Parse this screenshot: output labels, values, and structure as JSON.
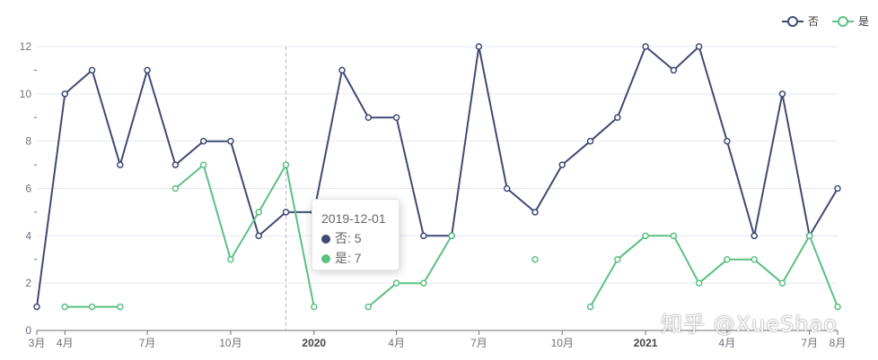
{
  "chart_data": {
    "type": "line",
    "x": [
      "2019-03-01",
      "2019-04-01",
      "2019-05-01",
      "2019-06-01",
      "2019-07-01",
      "2019-08-01",
      "2019-09-01",
      "2019-10-01",
      "2019-11-01",
      "2019-12-01",
      "2020-01-01",
      "2020-02-01",
      "2020-03-01",
      "2020-04-01",
      "2020-05-01",
      "2020-06-01",
      "2020-07-01",
      "2020-08-01",
      "2020-09-01",
      "2020-10-01",
      "2020-11-01",
      "2020-12-01",
      "2021-01-01",
      "2021-02-01",
      "2021-03-01",
      "2021-04-01",
      "2021-05-01",
      "2021-06-01",
      "2021-07-01",
      "2021-08-01"
    ],
    "x_tick_labels": [
      {
        "date": "2019-03-01",
        "label": "3月",
        "bold": false
      },
      {
        "date": "2019-04-01",
        "label": "4月",
        "bold": false
      },
      {
        "date": "2019-07-01",
        "label": "7月",
        "bold": false
      },
      {
        "date": "2019-10-01",
        "label": "10月",
        "bold": false
      },
      {
        "date": "2020-01-01",
        "label": "2020",
        "bold": true
      },
      {
        "date": "2020-04-01",
        "label": "4月",
        "bold": false
      },
      {
        "date": "2020-07-01",
        "label": "7月",
        "bold": false
      },
      {
        "date": "2020-10-01",
        "label": "10月",
        "bold": false
      },
      {
        "date": "2021-01-01",
        "label": "2021",
        "bold": true
      },
      {
        "date": "2021-04-01",
        "label": "4月",
        "bold": false
      },
      {
        "date": "2021-07-01",
        "label": "7月",
        "bold": false
      },
      {
        "date": "2021-08-01",
        "label": "8月",
        "bold": false
      }
    ],
    "y_ticks": [
      0,
      2,
      4,
      6,
      8,
      10,
      12
    ],
    "ylim": [
      0,
      12
    ],
    "grid": true,
    "legend_position": "top-right",
    "series": [
      {
        "name": "否",
        "color": "#3f4a75",
        "values": [
          1,
          10,
          11,
          7,
          11,
          7,
          8,
          8,
          4,
          5,
          5,
          11,
          9,
          9,
          4,
          4,
          12,
          6,
          5,
          7,
          8,
          9,
          12,
          11,
          12,
          8,
          4,
          10,
          4,
          6
        ]
      },
      {
        "name": "是",
        "color": "#5cc083",
        "values": [
          null,
          1,
          1,
          1,
          null,
          6,
          7,
          3,
          5,
          7,
          1,
          null,
          1,
          2,
          2,
          4,
          null,
          null,
          3,
          null,
          1,
          3,
          4,
          4,
          2,
          3,
          3,
          2,
          4,
          1
        ]
      }
    ],
    "hover_date": "2019-12-01"
  },
  "tooltip": {
    "title": "2019-12-01",
    "rows": [
      {
        "name": "否",
        "value": "5",
        "color": "#3f4a75"
      },
      {
        "name": "是",
        "value": "7",
        "color": "#5cc083"
      }
    ]
  },
  "watermark": "知乎 @XueShao"
}
